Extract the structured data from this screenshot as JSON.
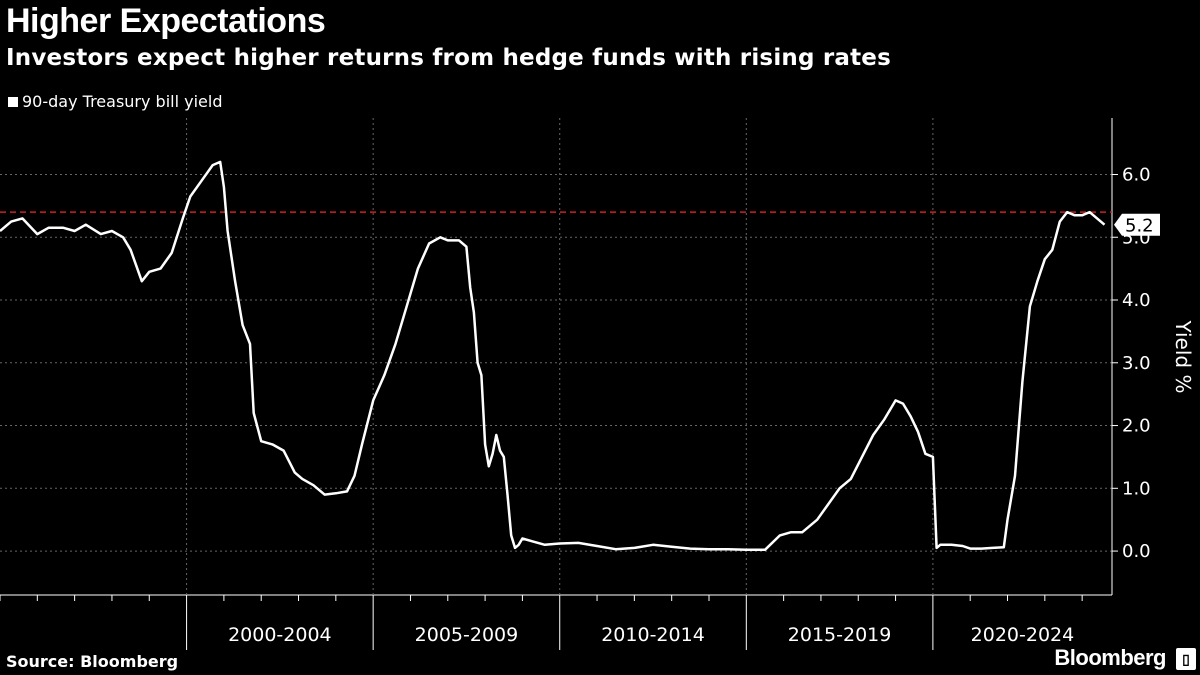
{
  "header": {
    "title": "Higher Expectations",
    "subtitle": "Investors expect higher returns from hedge funds with rising rates"
  },
  "footer": {
    "source": "Source: Bloomberg",
    "brand": "Bloomberg"
  },
  "colors": {
    "background": "#000000",
    "line": "#ffffff",
    "reference_line": "#cc2222",
    "grid": "#666666"
  },
  "chart_data": {
    "type": "line",
    "title": "Higher Expectations",
    "subtitle": "Investors expect higher returns from hedge funds with rising rates",
    "ylabel": "Yield %",
    "xlabel": "",
    "ylim": [
      -0.7,
      6.9
    ],
    "xlim": [
      1995.0,
      2024.8
    ],
    "yticks": [
      0.0,
      1.0,
      2.0,
      3.0,
      4.0,
      5.0,
      6.0
    ],
    "ytick_labels": [
      "0.0",
      "1.0",
      "2.0",
      "3.0",
      "4.0",
      "5.0",
      "6.0"
    ],
    "x_periods": [
      "2000-2004",
      "2005-2009",
      "2010-2014",
      "2015-2019",
      "2020-2024"
    ],
    "x_period_starts": [
      2000,
      2005,
      2010,
      2015,
      2020
    ],
    "grid": true,
    "legend": "top-left",
    "reference_line": {
      "y": 5.4,
      "style": "dashed",
      "color": "#cc2222"
    },
    "last_value_label": "5.2",
    "series": [
      {
        "name": "90-day Treasury bill yield",
        "x": [
          1995.0,
          1995.3,
          1995.6,
          1996.0,
          1996.3,
          1996.7,
          1997.0,
          1997.3,
          1997.7,
          1998.0,
          1998.3,
          1998.5,
          1998.8,
          1999.0,
          1999.3,
          1999.6,
          1999.9,
          2000.1,
          2000.4,
          2000.7,
          2000.9,
          2001.0,
          2001.1,
          2001.3,
          2001.5,
          2001.7,
          2001.8,
          2002.0,
          2002.3,
          2002.6,
          2002.9,
          2003.1,
          2003.4,
          2003.7,
          2004.0,
          2004.3,
          2004.5,
          2004.7,
          2005.0,
          2005.3,
          2005.6,
          2005.9,
          2006.2,
          2006.5,
          2006.8,
          2007.0,
          2007.3,
          2007.5,
          2007.6,
          2007.7,
          2007.8,
          2007.9,
          2008.0,
          2008.1,
          2008.2,
          2008.3,
          2008.4,
          2008.5,
          2008.6,
          2008.7,
          2008.8,
          2008.9,
          2009.0,
          2009.3,
          2009.6,
          2010.0,
          2010.5,
          2011.0,
          2011.5,
          2012.0,
          2012.5,
          2013.0,
          2013.5,
          2014.0,
          2014.5,
          2015.0,
          2015.5,
          2015.9,
          2016.2,
          2016.5,
          2016.9,
          2017.2,
          2017.5,
          2017.8,
          2018.1,
          2018.4,
          2018.7,
          2019.0,
          2019.2,
          2019.4,
          2019.6,
          2019.8,
          2020.0,
          2020.1,
          2020.2,
          2020.3,
          2020.5,
          2020.8,
          2021.0,
          2021.3,
          2021.6,
          2021.9,
          2022.0,
          2022.2,
          2022.4,
          2022.6,
          2022.8,
          2023.0,
          2023.2,
          2023.4,
          2023.6,
          2023.8,
          2024.0,
          2024.2,
          2024.4,
          2024.6
        ],
        "y": [
          5.1,
          5.25,
          5.3,
          5.05,
          5.15,
          5.15,
          5.1,
          5.2,
          5.05,
          5.1,
          5.0,
          4.8,
          4.3,
          4.45,
          4.5,
          4.75,
          5.3,
          5.65,
          5.9,
          6.15,
          6.2,
          5.8,
          5.1,
          4.3,
          3.6,
          3.3,
          2.2,
          1.75,
          1.7,
          1.6,
          1.25,
          1.15,
          1.05,
          0.9,
          0.92,
          0.95,
          1.2,
          1.7,
          2.4,
          2.8,
          3.3,
          3.9,
          4.5,
          4.9,
          5.0,
          4.95,
          4.95,
          4.85,
          4.2,
          3.8,
          3.0,
          2.8,
          1.7,
          1.35,
          1.55,
          1.85,
          1.6,
          1.5,
          0.9,
          0.25,
          0.05,
          0.1,
          0.2,
          0.15,
          0.1,
          0.12,
          0.13,
          0.08,
          0.03,
          0.05,
          0.1,
          0.07,
          0.04,
          0.03,
          0.03,
          0.02,
          0.02,
          0.25,
          0.3,
          0.3,
          0.5,
          0.75,
          1.0,
          1.15,
          1.5,
          1.85,
          2.1,
          2.4,
          2.35,
          2.15,
          1.9,
          1.55,
          1.5,
          0.05,
          0.1,
          0.1,
          0.1,
          0.08,
          0.04,
          0.04,
          0.05,
          0.06,
          0.5,
          1.2,
          2.7,
          3.9,
          4.3,
          4.65,
          4.8,
          5.25,
          5.4,
          5.35,
          5.35,
          5.4,
          5.3,
          5.2
        ]
      }
    ]
  }
}
